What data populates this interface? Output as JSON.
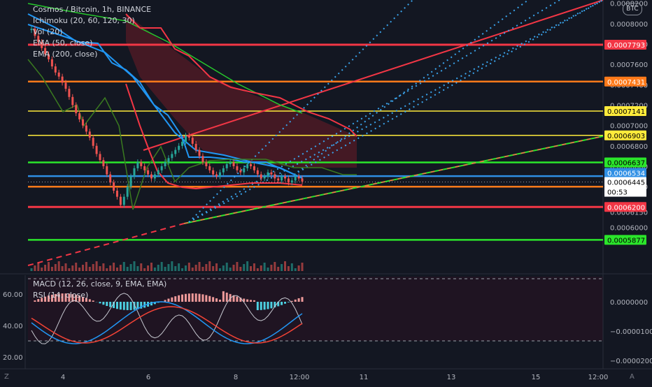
{
  "header": {
    "symbol_line": "Cosmos / Bitcoin, 1h, BINANCE",
    "indicators": [
      "Ichimoku (20, 60, 120, 30)",
      "Vol (20)",
      "EMA (50, close)",
      "EMA (200, close)"
    ],
    "currency_badge": "BTC"
  },
  "sub_pane": {
    "indicators": [
      "MACD (12, 26, close, 9, EMA, EMA)",
      "RSI (14, close)"
    ]
  },
  "corner_left": "Z",
  "corner_right": "A",
  "colors": {
    "background": "#131722",
    "red": "#f23645",
    "orange": "#ff7a1a",
    "yellow": "#ffeb3b",
    "green": "#2be52b",
    "blue": "#2f8fe5",
    "dotted": "#3aa4ec",
    "ema_green": "#26c72c",
    "kijun_blue": "#2196f3"
  },
  "chart_data": [
    {
      "type": "line",
      "title": "Cosmos / Bitcoin, 1h, BINANCE",
      "x_ticks": [
        "4",
        "6",
        "8",
        "12:00",
        "11",
        "13",
        "15",
        "12:00"
      ],
      "y_ticks": [
        "0.0008200",
        "0.0008000",
        "0.0007800",
        "0.0007600",
        "0.0007400",
        "0.0007200",
        "0.0007000",
        "0.0006800",
        "0.0006600",
        "0.0006400",
        "0.0006150",
        "0.0006000"
      ],
      "ylim": [
        0.00058,
        0.00082
      ],
      "price_lines": [
        {
          "value": 0.0007793,
          "label": "0.0007793",
          "color": "red"
        },
        {
          "value": 0.0007431,
          "label": "0.0007431",
          "color": "orange"
        },
        {
          "value": 0.0007141,
          "label": "0.0007141",
          "color": "yellow"
        },
        {
          "value": 0.0006903,
          "label": "0.0006903",
          "color": "yellow"
        },
        {
          "value": 0.0006637,
          "label": "0.0006637",
          "color": "green"
        },
        {
          "value": 0.0006503,
          "label": "0.0006503",
          "color": "blue"
        },
        {
          "value": 0.0006399,
          "label": "0.0006399",
          "color": "orange"
        },
        {
          "value": 0.00062,
          "label": "0.0006200",
          "color": "red"
        },
        {
          "value": 0.0005877,
          "label": "0.0005877",
          "color": "green"
        }
      ],
      "price_labels": [
        {
          "value": 0.0006534,
          "label": "0.0006534",
          "color": "blue"
        },
        {
          "value": 0.0006445,
          "label": "0.0006445",
          "color": "white"
        }
      ],
      "countdown": "00:53",
      "close_series": [
        0.000795,
        0.000788,
        0.000782,
        0.000776,
        0.00077,
        0.000765,
        0.000758,
        0.000752,
        0.000748,
        0.000742,
        0.000736,
        0.000728,
        0.00072,
        0.000712,
        0.000706,
        0.0007,
        0.000694,
        0.000688,
        0.00068,
        0.000672,
        0.000666,
        0.00066,
        0.000652,
        0.000644,
        0.000636,
        0.00063,
        0.000622,
        0.00063,
        0.00064,
        0.00065,
        0.000658,
        0.000664,
        0.00066,
        0.000656,
        0.000652,
        0.000648,
        0.000652,
        0.000656,
        0.00066,
        0.000664,
        0.000668,
        0.000672,
        0.000676,
        0.00068,
        0.000684,
        0.00069,
        0.000688,
        0.000682,
        0.000676,
        0.00067,
        0.000664,
        0.00066,
        0.000656,
        0.000652,
        0.00065,
        0.000654,
        0.000658,
        0.000662,
        0.000664,
        0.00066,
        0.000656,
        0.000654,
        0.000658,
        0.000662,
        0.00066,
        0.000656,
        0.000652,
        0.000648,
        0.00065,
        0.000654,
        0.000652,
        0.000648,
        0.000646,
        0.00065,
        0.000648,
        0.000644,
        0.000646,
        0.00065,
        0.000648,
        0.000645
      ]
    },
    {
      "type": "line",
      "title": "MACD (12, 26, close, 9, EMA, EMA) / RSI (14, close)",
      "left_ticks": [
        "60.00",
        "40.00",
        "20.00"
      ],
      "right_ticks": [
        "0.0000000",
        "−0.0000100",
        "−0.0000200"
      ],
      "rsi_levels": [
        70,
        30
      ]
    }
  ]
}
